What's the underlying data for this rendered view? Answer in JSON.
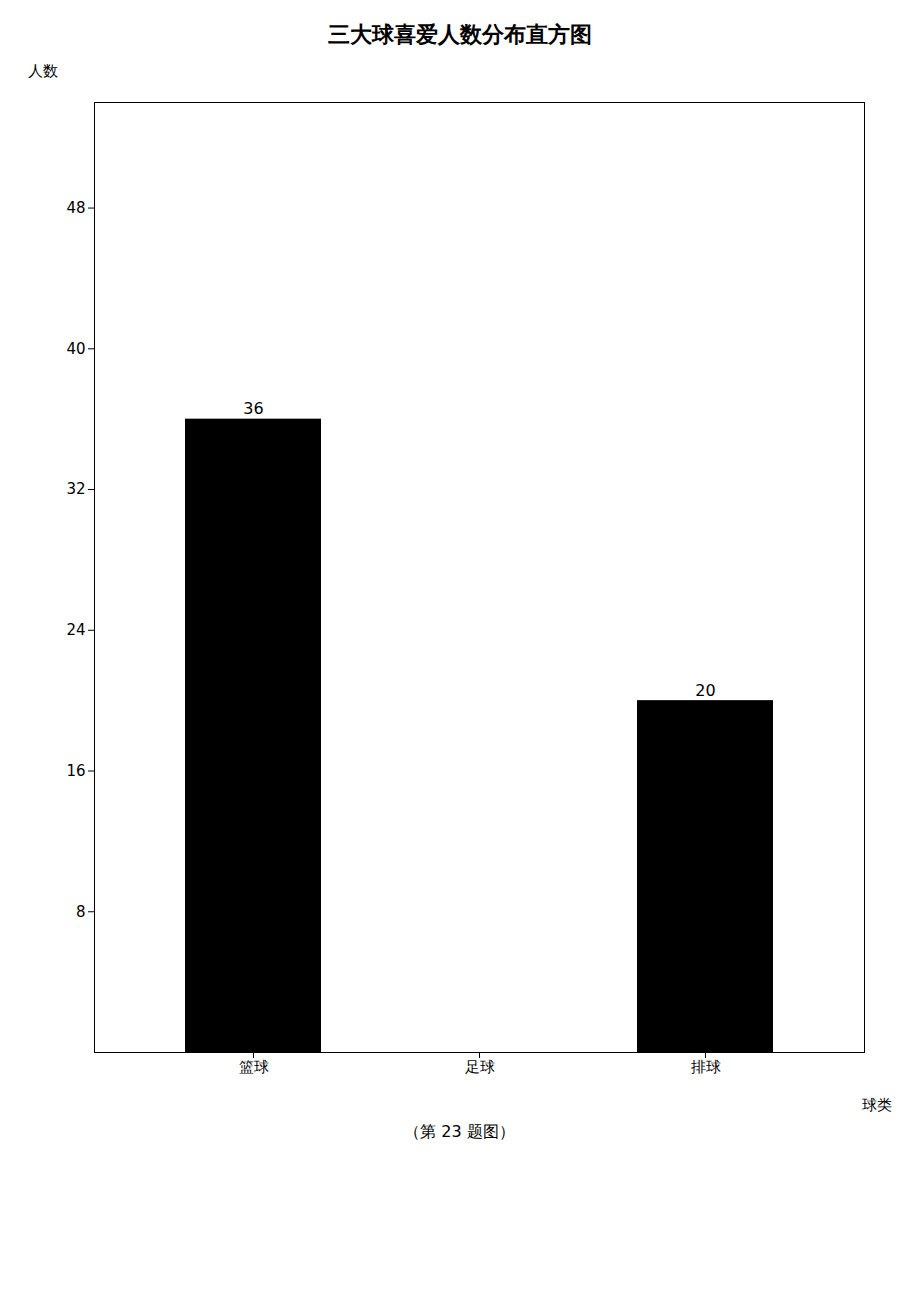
{
  "chart_data": {
    "type": "bar",
    "title": "三大球喜爱人数分布直方图",
    "caption": "（第 23 题图）",
    "x_label": "球类",
    "y_label": "人数",
    "categories": [
      "篮球",
      "足球",
      "排球"
    ],
    "values": [
      36,
      0,
      20
    ],
    "ylim": [
      0,
      54
    ],
    "yticks": [
      8,
      16,
      24,
      32,
      40,
      48
    ],
    "data_labels": true
  }
}
